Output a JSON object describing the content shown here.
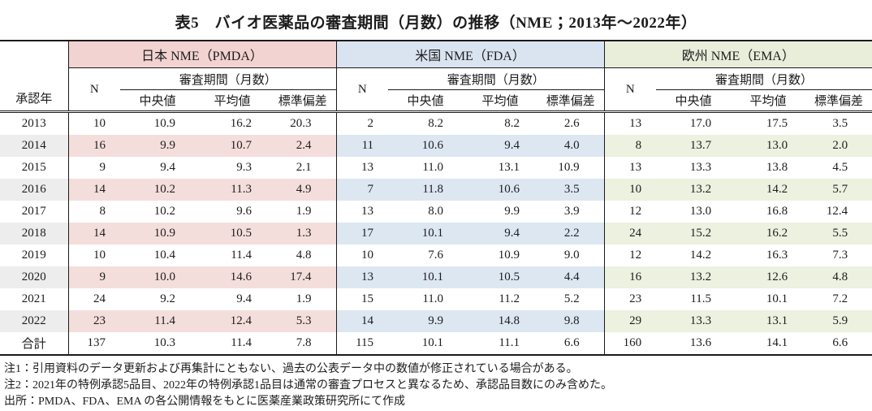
{
  "page": {
    "title": "表5　バイオ医薬品の審査期間（月数）の推移（NME；2013年～2022年）"
  },
  "table": {
    "year_header": "承認年",
    "n_header": "N",
    "period_header": "審査期間（月数）",
    "sub_headers": [
      "中央値",
      "平均値",
      "標準偏差"
    ],
    "groups": [
      {
        "key": "jp",
        "label": "日本 NME（PMDA）",
        "header_color": "#f2d3d1",
        "stripe_color": "#f4dedc"
      },
      {
        "key": "us",
        "label": "米国 NME（FDA）",
        "header_color": "#dae4f1",
        "stripe_color": "#dde7f2"
      },
      {
        "key": "eu",
        "label": "欧州 NME（EMA）",
        "header_color": "#e8eeda",
        "stripe_color": "#ecf1e0"
      }
    ],
    "year_stripe_color": "#ededed",
    "rows": [
      {
        "year": "2013",
        "jp": [
          "10",
          "10.9",
          "16.2",
          "20.3"
        ],
        "us": [
          "2",
          "8.2",
          "8.2",
          "2.6"
        ],
        "eu": [
          "13",
          "17.0",
          "17.5",
          "3.5"
        ]
      },
      {
        "year": "2014",
        "jp": [
          "16",
          "9.9",
          "10.7",
          "2.4"
        ],
        "us": [
          "11",
          "10.6",
          "9.4",
          "4.0"
        ],
        "eu": [
          "8",
          "13.7",
          "13.0",
          "2.0"
        ]
      },
      {
        "year": "2015",
        "jp": [
          "9",
          "9.4",
          "9.3",
          "2.1"
        ],
        "us": [
          "13",
          "11.0",
          "13.1",
          "10.9"
        ],
        "eu": [
          "13",
          "13.3",
          "13.8",
          "4.5"
        ]
      },
      {
        "year": "2016",
        "jp": [
          "14",
          "10.2",
          "11.3",
          "4.9"
        ],
        "us": [
          "7",
          "11.8",
          "10.6",
          "3.5"
        ],
        "eu": [
          "10",
          "13.2",
          "14.2",
          "5.7"
        ]
      },
      {
        "year": "2017",
        "jp": [
          "8",
          "10.2",
          "9.6",
          "1.9"
        ],
        "us": [
          "13",
          "8.0",
          "9.9",
          "3.9"
        ],
        "eu": [
          "12",
          "13.0",
          "16.8",
          "12.4"
        ]
      },
      {
        "year": "2018",
        "jp": [
          "14",
          "10.9",
          "10.5",
          "1.3"
        ],
        "us": [
          "17",
          "10.1",
          "9.4",
          "2.2"
        ],
        "eu": [
          "24",
          "15.2",
          "16.2",
          "5.5"
        ]
      },
      {
        "year": "2019",
        "jp": [
          "10",
          "10.4",
          "11.4",
          "4.8"
        ],
        "us": [
          "10",
          "7.6",
          "10.9",
          "9.0"
        ],
        "eu": [
          "12",
          "14.2",
          "16.3",
          "7.3"
        ]
      },
      {
        "year": "2020",
        "jp": [
          "9",
          "10.0",
          "14.6",
          "17.4"
        ],
        "us": [
          "13",
          "10.1",
          "10.5",
          "4.4"
        ],
        "eu": [
          "16",
          "13.2",
          "12.6",
          "4.8"
        ]
      },
      {
        "year": "2021",
        "jp": [
          "24",
          "9.2",
          "9.4",
          "1.9"
        ],
        "us": [
          "15",
          "11.0",
          "11.2",
          "5.2"
        ],
        "eu": [
          "23",
          "11.5",
          "10.1",
          "7.2"
        ]
      },
      {
        "year": "2022",
        "jp": [
          "23",
          "11.4",
          "12.4",
          "5.3"
        ],
        "us": [
          "14",
          "9.9",
          "14.8",
          "9.8"
        ],
        "eu": [
          "29",
          "13.3",
          "13.1",
          "5.9"
        ]
      }
    ],
    "total_row": {
      "year": "合計",
      "jp": [
        "137",
        "10.3",
        "11.4",
        "7.8"
      ],
      "us": [
        "115",
        "10.1",
        "11.1",
        "6.6"
      ],
      "eu": [
        "160",
        "13.6",
        "14.1",
        "6.6"
      ]
    }
  },
  "footnotes": [
    "注1：引用資料のデータ更新および再集計にともない、過去の公表データ中の数値が修正されている場合がある。",
    "注2：2021年の特例承認5品目、2022年の特例承認1品目は通常の審査プロセスと異なるため、承認品目数にのみ含めた。",
    "出所：PMDA、FDA、EMA の各公開情報をもとに医薬産業政策研究所にて作成"
  ]
}
